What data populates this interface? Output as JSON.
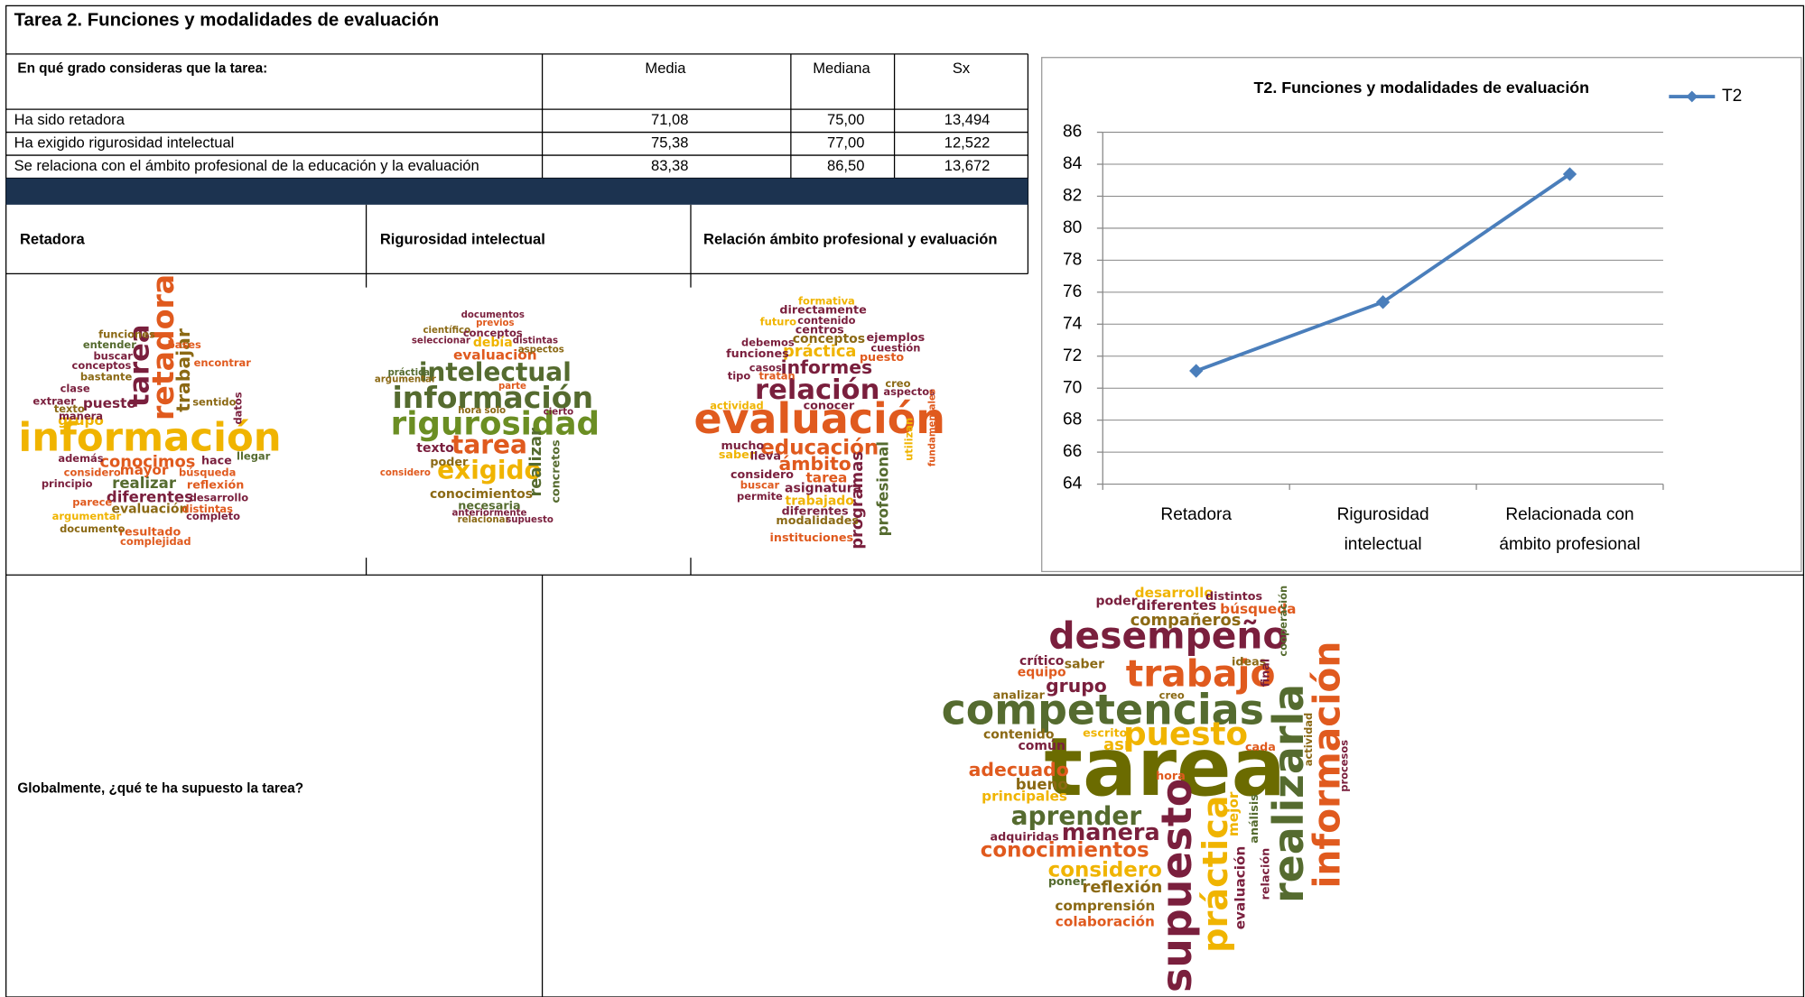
{
  "header": {
    "title": "Tarea 2. Funciones y modalidades de evaluación"
  },
  "table": {
    "header": [
      "En qué grado consideras que la tarea:",
      "Media",
      "Mediana",
      "Sx"
    ],
    "rows": [
      [
        "Ha sido retadora",
        "71,08",
        "75,00",
        "13,494"
      ],
      [
        "Ha exigido rigurosidad intelectual",
        "75,38",
        "77,00",
        "12,522"
      ],
      [
        "Se relaciona con el ámbito profesional de la educación y la evaluación",
        "83,38",
        "86,50",
        "13,672"
      ]
    ]
  },
  "cloud_headers": [
    "Retadora",
    "Rigurosidad intelectual",
    "Relación ámbito profesional y evaluación"
  ],
  "global_question": "Globalmente, ¿qué te ha supuesto la tarea?",
  "wordclouds": [
    {
      "words": [
        "información",
        "retadora",
        "tarea",
        "trabajar",
        "conocimos",
        "diferentes",
        "realizar",
        "mayor",
        "evaluación",
        "resultado",
        "puesto",
        "grupo",
        "funciones",
        "entender",
        "buscar",
        "conceptos",
        "bastante",
        "clase",
        "extraer",
        "texto",
        "manera",
        "encontrar",
        "bases",
        "búsqueda",
        "hace",
        "reflexión",
        "desarrollo",
        "completo",
        "distintas",
        "considero",
        "principio",
        "parece",
        "argumentar",
        "documento",
        "complejidad",
        "además",
        "llegar",
        "datos",
        "sentido"
      ]
    },
    {
      "words": [
        "información",
        "rigurosidad",
        "intelectual",
        "tarea",
        "exigido",
        "evaluación",
        "conocimientos",
        "necesaria",
        "relacionar",
        "supuesto",
        "documentos",
        "previos",
        "científico",
        "conceptos",
        "seleccionar",
        "debía",
        "distintas",
        "aspectos",
        "poder",
        "texto",
        "concretos",
        "realizar",
        "cierto",
        "parte",
        "práctica",
        "argumentar",
        "solo",
        "hora",
        "considero",
        "anteriormente"
      ]
    },
    {
      "words": [
        "evaluación",
        "relación",
        "informes",
        "educación",
        "ámbito",
        "práctica",
        "conceptos",
        "centros",
        "directamente",
        "formativa",
        "contenido",
        "futuro",
        "debemos",
        "funciones",
        "ejemplos",
        "cuestión",
        "puesto",
        "aspectos",
        "creo",
        "programas",
        "profesional",
        "tarea",
        "asignatura",
        "trabajado",
        "diferentes",
        "modalidades",
        "instituciones",
        "saber",
        "mucho",
        "considero",
        "buscar",
        "permite",
        "conocer",
        "casos",
        "tratan",
        "tipo",
        "actividad",
        "lleva",
        "utilizan",
        "fundamentales"
      ]
    },
    {
      "words": [
        "tarea",
        "competencias",
        "desempeño",
        "trabajo",
        "realizarla",
        "información",
        "supuesto",
        "práctica",
        "puesto",
        "aprender",
        "manera",
        "conocimientos",
        "considero",
        "reflexión",
        "comprensión",
        "colaboración",
        "adecuado",
        "bueno",
        "principales",
        "contenido",
        "común",
        "grupo",
        "equipo",
        "crítico",
        "saber",
        "analizar",
        "compañeros",
        "desarrollo",
        "poder",
        "diferentes",
        "distintos",
        "búsqueda",
        "ideas",
        "creo",
        "escrito",
        "así",
        "adquiridas",
        "poner",
        "evaluación",
        "relación",
        "análisis",
        "mejor",
        "actividad",
        "procesos",
        "cooperación",
        "final",
        "hora",
        "cada"
      ]
    }
  ],
  "chart_data": {
    "type": "line",
    "title": "T2. Funciones y modalidades de evaluación",
    "categories": [
      [
        "Retadora"
      ],
      [
        "Rigurosidad",
        "intelectual"
      ],
      [
        "Relacionada con",
        "ámbito profesional"
      ]
    ],
    "series": [
      {
        "name": "T2",
        "color": "#4a7ebb",
        "values": [
          71.08,
          75.38,
          83.38
        ]
      }
    ],
    "ylim": [
      64,
      86
    ],
    "yticks": [
      64,
      66,
      68,
      70,
      72,
      74,
      76,
      78,
      80,
      82,
      84,
      86
    ],
    "grid": true,
    "legend": "top-right"
  }
}
